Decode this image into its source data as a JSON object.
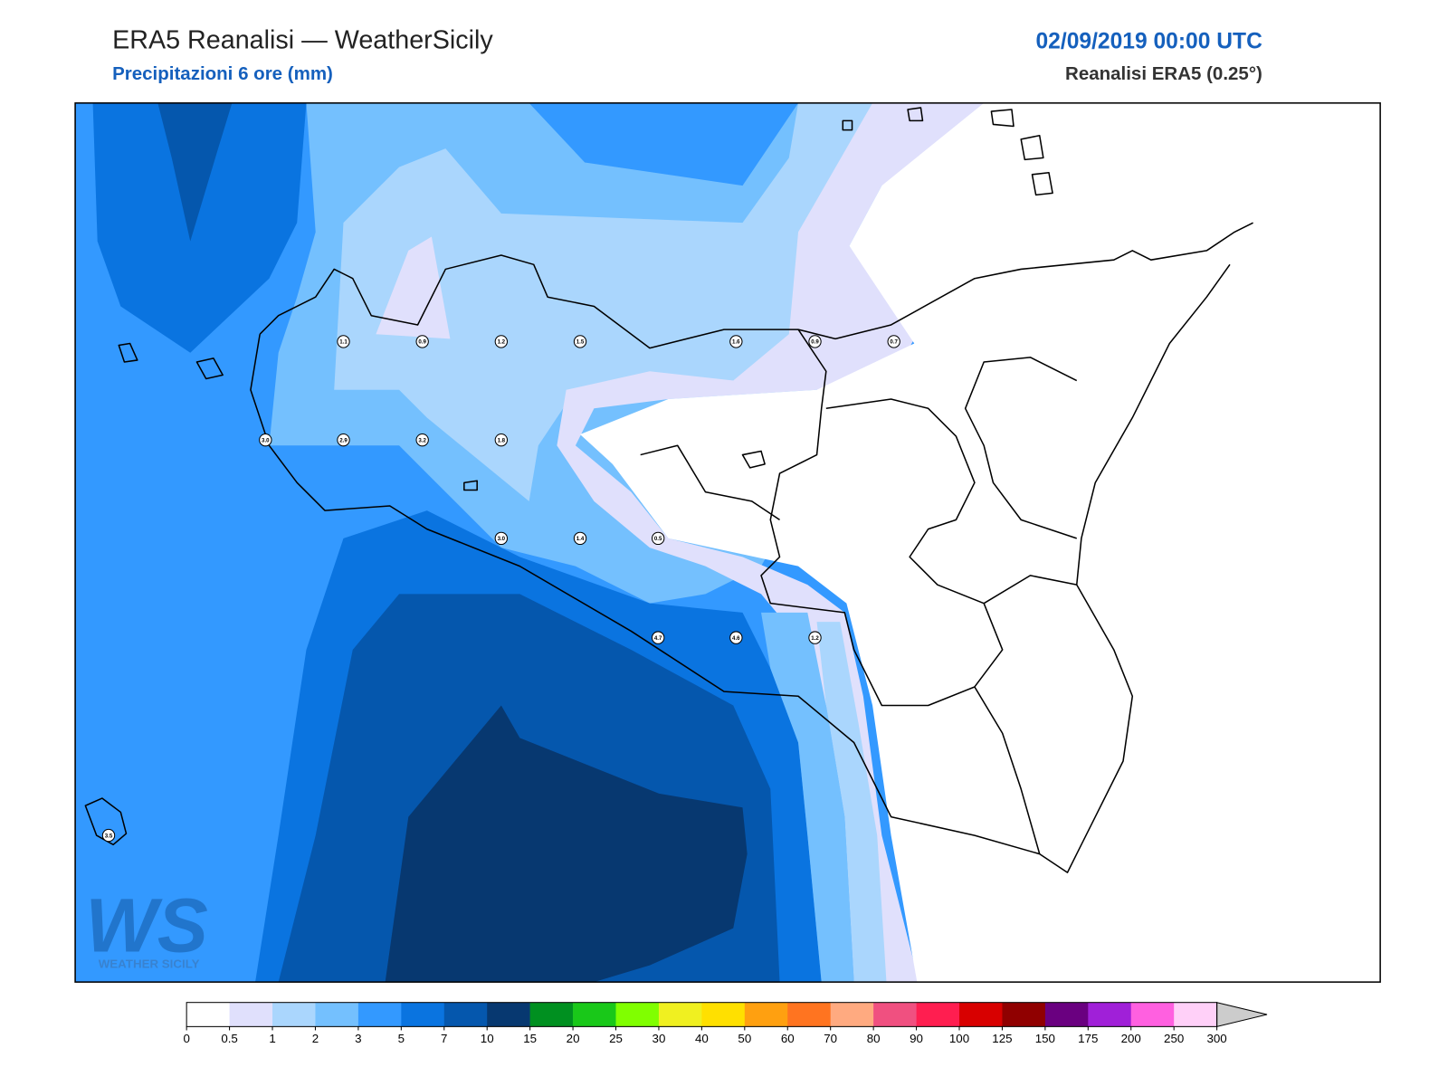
{
  "header": {
    "title": "ERA5 Reanalisi — WeatherSicily",
    "subtitle": "Precipitazioni 6 ore (mm)",
    "datetime": "02/09/2019 00:00 UTC",
    "source": "Reanalisi ERA5 (0.25°)"
  },
  "colorbar": {
    "ticks": [
      0,
      0.5,
      1,
      2,
      3,
      5,
      7,
      10,
      15,
      20,
      25,
      30,
      40,
      50,
      60,
      70,
      80,
      90,
      100,
      125,
      150,
      175,
      200,
      250,
      300
    ],
    "colors": [
      "#ffffff",
      "#e0e0fc",
      "#aad6fd",
      "#74c0fe",
      "#3399ff",
      "#0a74e0",
      "#0557ad",
      "#073870",
      "#009020",
      "#19c819",
      "#80ff00",
      "#f0f020",
      "#ffe000",
      "#ffa010",
      "#ff7420",
      "#ffaa80",
      "#f05080",
      "#ff1e50",
      "#d80000",
      "#900000",
      "#6a0080",
      "#a020d8",
      "#ff60e0",
      "#ffd0f8"
    ],
    "extend_color": "#cccccc"
  },
  "stations": {
    "values": [
      "1.1",
      "0.9",
      "1.2",
      "1.5",
      "1.6",
      "0.9",
      "0.7",
      "3.0",
      "2.9",
      "3.2",
      "1.8",
      "3.0",
      "1.4",
      "0.5",
      "4.7",
      "4.6",
      "1.2",
      "3.5"
    ]
  },
  "logo": {
    "text": "WS",
    "subtitle": "WEATHER SICILY"
  }
}
